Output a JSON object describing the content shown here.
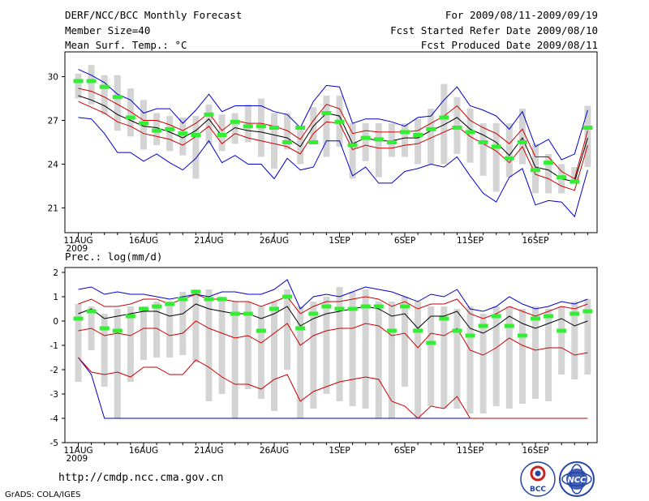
{
  "header": {
    "title": "DERF/NCC/BCC Monthly Forecast",
    "member": "Member Size=40",
    "var1": "Mean Surf. Temp.: °C",
    "period": "For 2009/08/11-2009/09/19",
    "started": "Fcst Started Refer Date 2009/08/10",
    "produced": "Fcst Produced Date 2009/08/11"
  },
  "var2": "Prec.: log(mm/d)",
  "footer": {
    "url": "http://cmdp.ncc.cma.gov.cn",
    "credit": "GrADS: COLA/IGES",
    "logo_bcc": "BCC",
    "logo_ncc": "NCC"
  },
  "colors": {
    "box": "#d4d4d4",
    "envelope": "#0000cc",
    "spread": "#cc0000",
    "mean": "#000000",
    "obs": "#33ee33"
  },
  "chart_data": [
    {
      "type": "box",
      "title": "Mean Surf. Temp.: °C",
      "x": [
        1,
        2,
        3,
        4,
        5,
        6,
        7,
        8,
        9,
        10,
        11,
        12,
        13,
        14,
        15,
        16,
        17,
        18,
        19,
        20,
        21,
        22,
        23,
        24,
        25,
        26,
        27,
        28,
        29,
        30,
        31,
        32,
        33,
        34,
        35,
        36,
        37,
        38,
        39,
        40
      ],
      "xtick_values": [
        1,
        6,
        11,
        16,
        21,
        26,
        31,
        36
      ],
      "xtick_labels": [
        "11AUG",
        "16AUG",
        "21AUG",
        "26AUG",
        "1SEP",
        "6SEP",
        "11SEP",
        "16SEP"
      ],
      "year_label": "2009",
      "ylim": [
        19.3,
        31.7
      ],
      "ytick_values": [
        21,
        24,
        27,
        30
      ],
      "ytick_labels": [
        "21",
        "24",
        "27",
        "30"
      ],
      "max": [
        30.5,
        30.1,
        29.6,
        28.8,
        28.4,
        27.5,
        27.8,
        27.8,
        26.8,
        27.7,
        28.8,
        27.6,
        28.0,
        28.0,
        28.0,
        27.6,
        27.4,
        26.5,
        28.3,
        29.4,
        29.3,
        26.8,
        27.1,
        27.1,
        26.9,
        26.6,
        27.2,
        27.3,
        28.4,
        29.3,
        28.0,
        27.7,
        27.3,
        26.4,
        27.6,
        25.2,
        25.7,
        24.3,
        24.7,
        27.7
      ],
      "p90": [
        29.2,
        29.0,
        28.6,
        28.1,
        27.6,
        27.0,
        27.0,
        26.7,
        26.3,
        26.8,
        27.5,
        26.3,
        27.0,
        26.8,
        26.8,
        26.6,
        26.3,
        25.7,
        27.0,
        28.1,
        27.8,
        26.1,
        26.3,
        26.2,
        26.2,
        26.2,
        26.3,
        26.8,
        27.3,
        28.0,
        27.0,
        26.5,
        26.1,
        25.4,
        26.4,
        24.5,
        24.5,
        23.5,
        23.0,
        26.3
      ],
      "mean": [
        28.7,
        28.4,
        28.0,
        27.4,
        27.0,
        26.6,
        26.5,
        26.2,
        25.8,
        26.3,
        27.1,
        25.9,
        26.5,
        26.3,
        26.2,
        26.0,
        25.8,
        25.2,
        26.6,
        27.5,
        27.3,
        25.4,
        25.8,
        25.6,
        25.6,
        25.8,
        25.8,
        26.3,
        26.7,
        27.2,
        26.4,
        26.0,
        25.5,
        24.6,
        25.8,
        23.8,
        23.6,
        23.0,
        22.8,
        25.8
      ],
      "p10": [
        28.3,
        27.9,
        27.5,
        26.9,
        26.6,
        26.1,
        25.9,
        25.7,
        25.3,
        25.9,
        26.6,
        25.4,
        26.1,
        25.8,
        25.6,
        25.4,
        25.2,
        24.7,
        26.1,
        26.9,
        26.8,
        25.0,
        25.3,
        25.1,
        25.1,
        25.3,
        25.4,
        25.8,
        26.2,
        26.6,
        25.9,
        25.4,
        24.9,
        24.1,
        25.2,
        23.3,
        23.0,
        22.5,
        22.2,
        25.3
      ],
      "min": [
        27.2,
        27.1,
        26.1,
        24.8,
        24.8,
        24.2,
        24.7,
        24.1,
        23.6,
        24.4,
        25.6,
        24.1,
        24.6,
        24.0,
        24.0,
        23.0,
        24.4,
        23.6,
        23.8,
        25.6,
        25.6,
        23.2,
        23.8,
        22.7,
        22.7,
        23.5,
        23.7,
        24.0,
        23.8,
        24.5,
        23.2,
        22.0,
        21.4,
        23.1,
        23.7,
        21.2,
        21.5,
        21.4,
        20.4,
        23.6
      ],
      "box_hi": [
        30.2,
        30.8,
        30.1,
        30.1,
        29.2,
        28.4,
        27.5,
        27.3,
        27.2,
        27.3,
        28.1,
        27.4,
        27.5,
        28.1,
        28.5,
        27.5,
        27.5,
        26.6,
        27.9,
        28.7,
        28.7,
        26.8,
        26.8,
        26.8,
        26.8,
        26.8,
        27.1,
        27.8,
        29.5,
        28.6,
        27.8,
        26.8,
        26.8,
        26.8,
        27.8,
        25.4,
        24.7,
        24.0,
        23.8,
        28.0
      ],
      "box_lo": [
        28.5,
        28.1,
        27.4,
        26.3,
        25.9,
        25.0,
        25.3,
        24.9,
        24.6,
        23.0,
        25.4,
        24.9,
        25.4,
        25.5,
        24.5,
        23.7,
        25.0,
        24.0,
        25.4,
        24.5,
        25.2,
        23.0,
        24.2,
        23.1,
        24.5,
        24.5,
        24.0,
        24.0,
        24.0,
        24.7,
        24.1,
        23.2,
        22.1,
        23.1,
        24.0,
        22.0,
        22.0,
        22.0,
        22.7,
        23.8
      ],
      "obs": [
        29.7,
        29.7,
        29.3,
        28.6,
        27.2,
        26.8,
        26.3,
        26.4,
        26.1,
        26.0,
        27.4,
        26.0,
        26.9,
        26.6,
        26.6,
        26.5,
        25.5,
        26.5,
        25.5,
        27.5,
        26.9,
        25.3,
        25.8,
        25.7,
        25.5,
        26.2,
        26.0,
        26.4,
        27.2,
        26.5,
        26.2,
        25.5,
        25.2,
        24.4,
        25.5,
        23.6,
        24.1,
        23.1,
        22.8,
        26.5
      ]
    },
    {
      "type": "box",
      "title": "Prec.: log(mm/d)",
      "x": [
        1,
        2,
        3,
        4,
        5,
        6,
        7,
        8,
        9,
        10,
        11,
        12,
        13,
        14,
        15,
        16,
        17,
        18,
        19,
        20,
        21,
        22,
        23,
        24,
        25,
        26,
        27,
        28,
        29,
        30,
        31,
        32,
        33,
        34,
        35,
        36,
        37,
        38,
        39,
        40
      ],
      "xtick_values": [
        1,
        6,
        11,
        16,
        21,
        26,
        31,
        36
      ],
      "xtick_labels": [
        "11AUG",
        "16AUG",
        "21AUG",
        "26AUG",
        "1SEP",
        "6SEP",
        "11SEP",
        "16SEP"
      ],
      "year_label": "2009",
      "ylim": [
        -5,
        2.2
      ],
      "ytick_values": [
        -5,
        -4,
        -3,
        -2,
        -1,
        0,
        1,
        2
      ],
      "ytick_labels": [
        "-5",
        "-4",
        "-3",
        "-2",
        "-1",
        "0",
        "1",
        "2"
      ],
      "max": [
        1.3,
        1.4,
        1.1,
        1.2,
        1.1,
        1.1,
        1.0,
        0.9,
        1.0,
        1.1,
        1.0,
        1.2,
        1.2,
        1.1,
        1.1,
        1.3,
        1.7,
        0.5,
        1.0,
        1.1,
        1.0,
        1.2,
        1.4,
        1.3,
        1.2,
        1.0,
        0.8,
        1.1,
        1.0,
        1.3,
        0.5,
        0.4,
        0.6,
        1.0,
        0.7,
        0.5,
        0.6,
        0.8,
        0.7,
        0.9
      ],
      "p90": [
        0.7,
        0.9,
        0.6,
        0.6,
        0.7,
        0.9,
        0.9,
        0.7,
        0.9,
        1.1,
        0.9,
        0.9,
        0.8,
        0.8,
        0.6,
        0.8,
        1.0,
        0.3,
        0.6,
        0.8,
        0.8,
        0.9,
        1.0,
        0.9,
        0.6,
        0.8,
        0.5,
        0.7,
        0.7,
        0.9,
        0.3,
        0.1,
        0.3,
        0.6,
        0.4,
        0.2,
        0.4,
        0.6,
        0.5,
        0.7
      ],
      "mean": [
        0.3,
        0.5,
        0.1,
        0.2,
        0.3,
        0.4,
        0.4,
        0.2,
        0.3,
        0.7,
        0.5,
        0.4,
        0.3,
        0.3,
        0.1,
        0.3,
        0.6,
        -0.2,
        0.1,
        0.3,
        0.4,
        0.5,
        0.6,
        0.5,
        0.2,
        0.3,
        -0.3,
        0.2,
        0.2,
        0.4,
        -0.3,
        -0.5,
        -0.2,
        0.2,
        -0.1,
        -0.3,
        -0.1,
        0.1,
        -0.2,
        0.0
      ],
      "p10": [
        -0.4,
        -0.3,
        -0.6,
        -0.5,
        -0.6,
        -0.3,
        -0.3,
        -0.6,
        -0.5,
        0.0,
        -0.3,
        -0.5,
        -0.7,
        -0.6,
        -0.9,
        -0.5,
        -0.1,
        -1.0,
        -0.6,
        -0.4,
        -0.3,
        -0.3,
        -0.1,
        -0.2,
        -0.6,
        -0.5,
        -1.1,
        -0.5,
        -0.6,
        -0.3,
        -1.2,
        -1.4,
        -1.1,
        -0.7,
        -1.0,
        -1.2,
        -1.1,
        -1.1,
        -1.4,
        -1.3
      ],
      "p05": [
        -1.5,
        -2.1,
        -2.2,
        -2.1,
        -2.3,
        -1.9,
        -1.9,
        -2.2,
        -2.2,
        -1.6,
        -1.9,
        -2.3,
        -2.6,
        -2.6,
        -2.8,
        -2.4,
        -2.2,
        -3.3,
        -2.9,
        -2.7,
        -2.5,
        -2.4,
        -2.3,
        -2.4,
        -3.3,
        -3.5,
        -4.0,
        -3.5,
        -3.6,
        -3.1,
        -4.0,
        -4.0,
        -4.0,
        -4.0,
        -4.0,
        -4.0,
        -4.0,
        -4.0,
        -4.0,
        -4.0
      ],
      "min": [
        -1.5,
        -2.2,
        -4.0,
        -4.0,
        -4.0,
        -4.0,
        -4.0,
        -4.0,
        -4.0,
        -4.0,
        -4.0,
        -4.0,
        -4.0,
        -4.0,
        -4.0,
        -4.0,
        -4.0,
        -4.0,
        -4.0,
        -4.0,
        -4.0,
        -4.0,
        -4.0,
        -4.0,
        -4.0,
        -4.0,
        -4.0,
        -4.0,
        -4.0,
        -4.0,
        -4.0,
        -4.0,
        -4.0,
        -4.0,
        -4.0,
        -4.0,
        -4.0,
        -4.0,
        -4.0,
        -4.0
      ],
      "box_hi": [
        0.7,
        0.6,
        0.3,
        0.5,
        0.6,
        0.6,
        0.8,
        0.8,
        1.2,
        1.3,
        1.3,
        1.0,
        0.8,
        0.8,
        0.6,
        0.8,
        1.3,
        0.6,
        0.8,
        1.0,
        1.4,
        1.2,
        1.3,
        0.8,
        0.8,
        1.0,
        0.8,
        0.6,
        0.6,
        0.5,
        0.6,
        0.3,
        0.6,
        0.6,
        0.5,
        0.6,
        0.5,
        0.6,
        0.8,
        0.9
      ],
      "box_lo": [
        -2.5,
        -1.2,
        -2.7,
        -4.0,
        -2.5,
        -1.6,
        -1.5,
        -1.5,
        -1.4,
        -1.7,
        -3.3,
        -3.0,
        -4.0,
        -2.8,
        -3.2,
        -3.7,
        -2.0,
        -4.0,
        -3.6,
        -3.0,
        -3.3,
        -3.5,
        -3.6,
        -4.0,
        -4.0,
        -2.7,
        -4.0,
        -3.5,
        -3.6,
        -3.6,
        -3.8,
        -3.8,
        -3.5,
        -3.6,
        -3.4,
        -3.2,
        -3.3,
        -2.2,
        -2.4,
        -2.2
      ],
      "obs": [
        0.1,
        0.4,
        -0.3,
        -0.4,
        0.2,
        0.5,
        0.6,
        0.7,
        0.9,
        1.2,
        0.9,
        0.9,
        0.3,
        0.3,
        -0.4,
        0.5,
        1.0,
        -0.3,
        0.3,
        0.6,
        0.5,
        0.5,
        0.6,
        0.6,
        -0.4,
        0.6,
        -0.4,
        -0.9,
        0.1,
        -0.4,
        -0.6,
        -0.2,
        0.2,
        -0.2,
        -0.6,
        0.1,
        0.2,
        -0.4,
        0.3,
        0.4
      ]
    }
  ]
}
